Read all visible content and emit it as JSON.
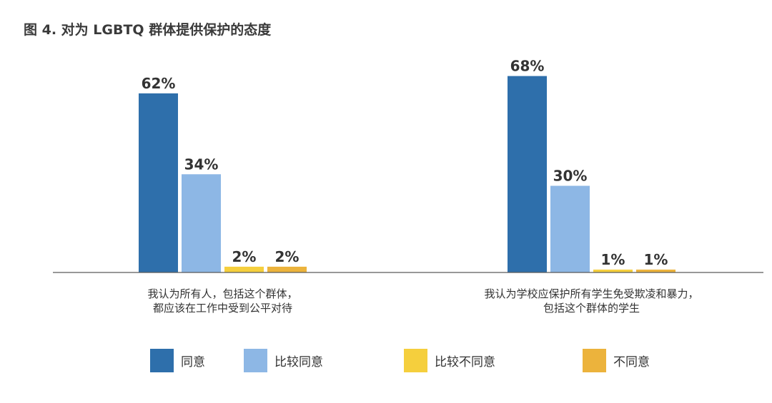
{
  "title": "图 4. 对为 LGBTQ 群体提供保护的态度",
  "chart_data": {
    "type": "bar",
    "categories": [
      [
        "我认为所有人，包括这个群体，",
        "都应该在工作中受到公平对待"
      ],
      [
        "我认为学校应保护所有学生免受欺凌和暴力，",
        "包括这个群体的学生"
      ]
    ],
    "series": [
      {
        "name": "同意",
        "values": [
          62,
          68
        ],
        "labels": [
          "62%",
          "68%"
        ],
        "color": "#2e6fab"
      },
      {
        "name": "比较同意",
        "values": [
          34,
          30
        ],
        "labels": [
          "34%",
          "30%"
        ],
        "color": "#8db7e5"
      },
      {
        "name": "比较不同意",
        "values": [
          2,
          1
        ],
        "labels": [
          "2%",
          "1%"
        ],
        "color": "#f5cf3d"
      },
      {
        "name": "不同意",
        "values": [
          2,
          1
        ],
        "labels": [
          "2%",
          "1%"
        ],
        "color": "#ecb33c"
      }
    ],
    "ylim": [
      0,
      100
    ],
    "grid": false,
    "legend_position": "bottom"
  }
}
